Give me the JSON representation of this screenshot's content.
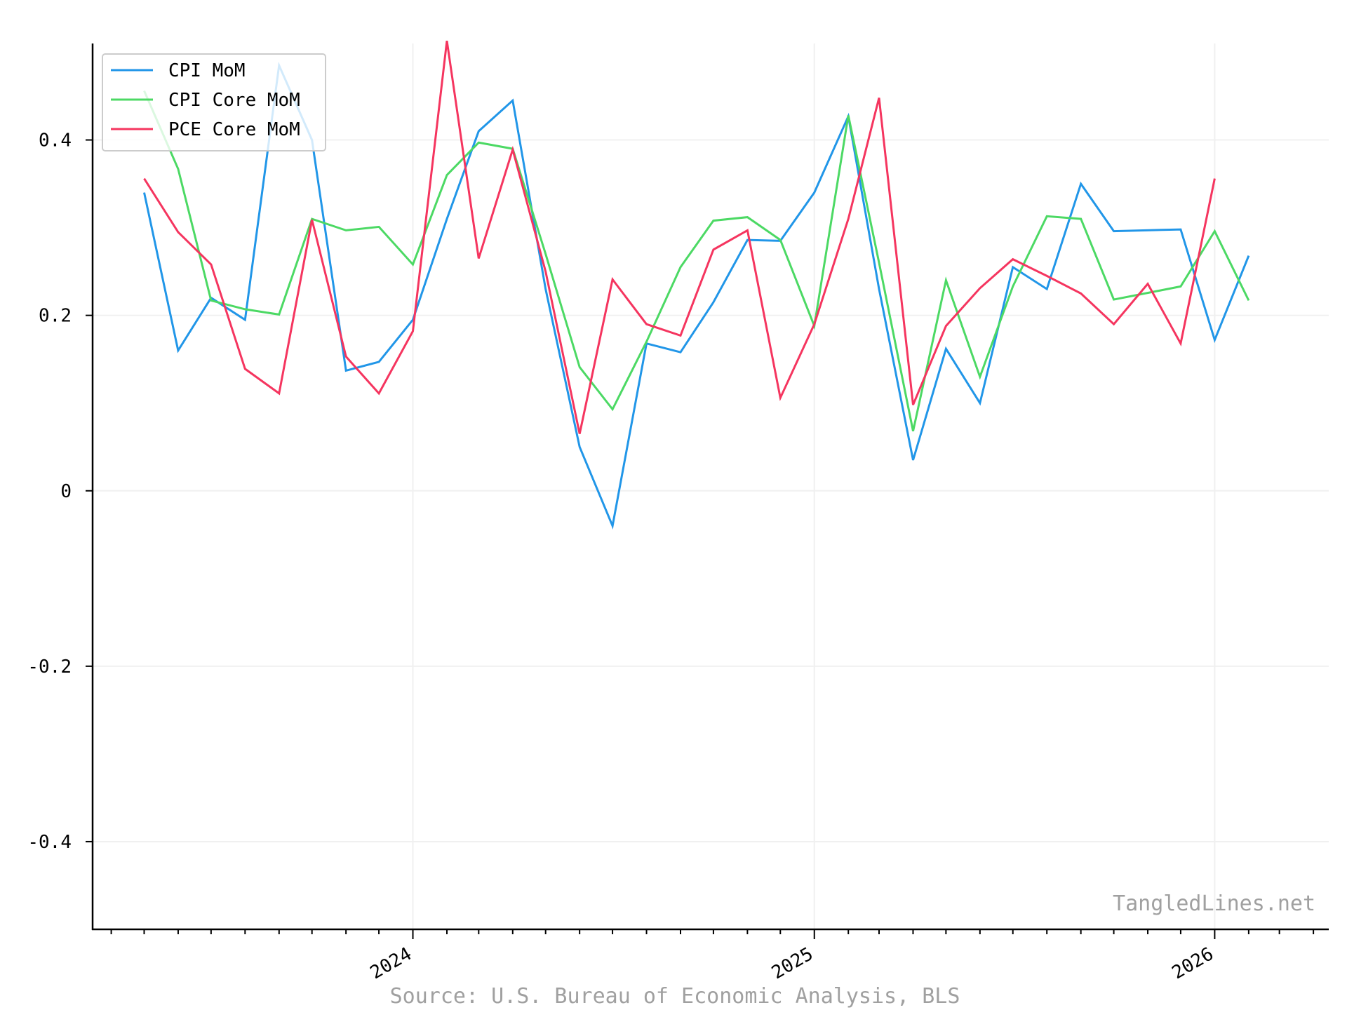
{
  "chart_data": {
    "type": "line",
    "title": "",
    "xlabel": "",
    "ylabel": "",
    "ylim": [
      -0.5,
      0.51
    ],
    "xlim": [
      "2023-03-15",
      "2026-04-15"
    ],
    "yticks": [
      0.4,
      0.2,
      0,
      -0.2,
      -0.4
    ],
    "ytick_labels": [
      "0.4",
      "0.2",
      "0",
      "-0.2",
      "-0.4"
    ],
    "xticks": [
      "2024-01-01",
      "2025-01-01",
      "2026-01-01"
    ],
    "xtick_labels": [
      "2024",
      "2025",
      "2026"
    ],
    "grid": true,
    "legend_position": "top-left",
    "series": [
      {
        "name": "CPI MoM",
        "color": "#2196e8",
        "points": [
          [
            "2023-05-01",
            0.34
          ],
          [
            "2023-06-01",
            0.16
          ],
          [
            "2023-07-01",
            0.22
          ],
          [
            "2023-08-01",
            0.195
          ],
          [
            "2023-09-01",
            0.485
          ],
          [
            "2023-10-01",
            0.4
          ],
          [
            "2023-11-01",
            0.137
          ],
          [
            "2023-12-01",
            0.147
          ],
          [
            "2024-01-01",
            0.195
          ],
          [
            "2024-02-01",
            0.31
          ],
          [
            "2024-03-01",
            0.41
          ],
          [
            "2024-04-01",
            0.445
          ],
          [
            "2024-05-01",
            0.23
          ],
          [
            "2024-06-01",
            0.05
          ],
          [
            "2024-07-01",
            -0.04
          ],
          [
            "2024-08-01",
            0.168
          ],
          [
            "2024-09-01",
            0.158
          ],
          [
            "2024-10-01",
            0.215
          ],
          [
            "2024-11-01",
            0.286
          ],
          [
            "2024-12-01",
            0.285
          ],
          [
            "2025-01-01",
            0.34
          ],
          [
            "2025-02-01",
            0.427
          ],
          [
            "2025-03-01",
            0.23
          ],
          [
            "2025-04-01",
            0.035
          ],
          [
            "2025-05-01",
            0.162
          ],
          [
            "2025-06-01",
            0.1
          ],
          [
            "2025-07-01",
            0.255
          ],
          [
            "2025-08-01",
            0.23
          ],
          [
            "2025-09-01",
            0.35
          ],
          [
            "2025-10-01",
            0.296
          ],
          [
            "2025-12-01",
            0.298
          ],
          [
            "2026-01-01",
            0.172
          ],
          [
            "2026-02-01",
            0.268
          ]
        ]
      },
      {
        "name": "CPI Core MoM",
        "color": "#4cd964",
        "points": [
          [
            "2023-05-01",
            0.456
          ],
          [
            "2023-06-01",
            0.367
          ],
          [
            "2023-07-01",
            0.217
          ],
          [
            "2023-08-01",
            0.207
          ],
          [
            "2023-09-01",
            0.201
          ],
          [
            "2023-10-01",
            0.31
          ],
          [
            "2023-11-01",
            0.297
          ],
          [
            "2023-12-01",
            0.301
          ],
          [
            "2024-01-01",
            0.258
          ],
          [
            "2024-02-01",
            0.36
          ],
          [
            "2024-03-01",
            0.397
          ],
          [
            "2024-04-01",
            0.39
          ],
          [
            "2024-05-01",
            0.27
          ],
          [
            "2024-06-01",
            0.141
          ],
          [
            "2024-07-01",
            0.093
          ],
          [
            "2024-08-01",
            0.17
          ],
          [
            "2024-09-01",
            0.255
          ],
          [
            "2024-10-01",
            0.308
          ],
          [
            "2024-11-01",
            0.312
          ],
          [
            "2024-12-01",
            0.286
          ],
          [
            "2025-01-01",
            0.188
          ],
          [
            "2025-02-01",
            0.428
          ],
          [
            "2025-03-01",
            0.26
          ],
          [
            "2025-04-01",
            0.068
          ],
          [
            "2025-05-01",
            0.24
          ],
          [
            "2025-06-01",
            0.13
          ],
          [
            "2025-07-01",
            0.233
          ],
          [
            "2025-08-01",
            0.313
          ],
          [
            "2025-09-01",
            0.31
          ],
          [
            "2025-10-01",
            0.218
          ],
          [
            "2025-12-01",
            0.233
          ],
          [
            "2026-01-01",
            0.296
          ],
          [
            "2026-02-01",
            0.217
          ]
        ]
      },
      {
        "name": "PCE Core MoM",
        "color": "#f5355f",
        "points": [
          [
            "2023-05-01",
            0.356
          ],
          [
            "2023-06-01",
            0.295
          ],
          [
            "2023-07-01",
            0.258
          ],
          [
            "2023-08-01",
            0.139
          ],
          [
            "2023-09-01",
            0.111
          ],
          [
            "2023-10-01",
            0.309
          ],
          [
            "2023-11-01",
            0.153
          ],
          [
            "2023-12-01",
            0.111
          ],
          [
            "2024-01-01",
            0.182
          ],
          [
            "2024-02-01",
            0.513
          ],
          [
            "2024-03-01",
            0.265
          ],
          [
            "2024-04-01",
            0.389
          ],
          [
            "2024-05-01",
            0.25
          ],
          [
            "2024-06-01",
            0.065
          ],
          [
            "2024-07-01",
            0.241
          ],
          [
            "2024-08-01",
            0.19
          ],
          [
            "2024-09-01",
            0.177
          ],
          [
            "2024-10-01",
            0.275
          ],
          [
            "2024-11-01",
            0.297
          ],
          [
            "2024-12-01",
            0.106
          ],
          [
            "2025-01-01",
            0.19
          ],
          [
            "2025-02-01",
            0.31
          ],
          [
            "2025-03-01",
            0.448
          ],
          [
            "2025-04-01",
            0.098
          ],
          [
            "2025-05-01",
            0.188
          ],
          [
            "2025-06-01",
            0.231
          ],
          [
            "2025-07-01",
            0.264
          ],
          [
            "2025-08-01",
            0.245
          ],
          [
            "2025-09-01",
            0.225
          ],
          [
            "2025-10-01",
            0.19
          ],
          [
            "2025-11-01",
            0.236
          ],
          [
            "2025-12-01",
            0.168
          ],
          [
            "2026-01-01",
            0.356
          ]
        ]
      }
    ]
  },
  "watermark": "TangledLines.net",
  "source": "Source: U.S. Bureau of Economic Analysis, BLS"
}
